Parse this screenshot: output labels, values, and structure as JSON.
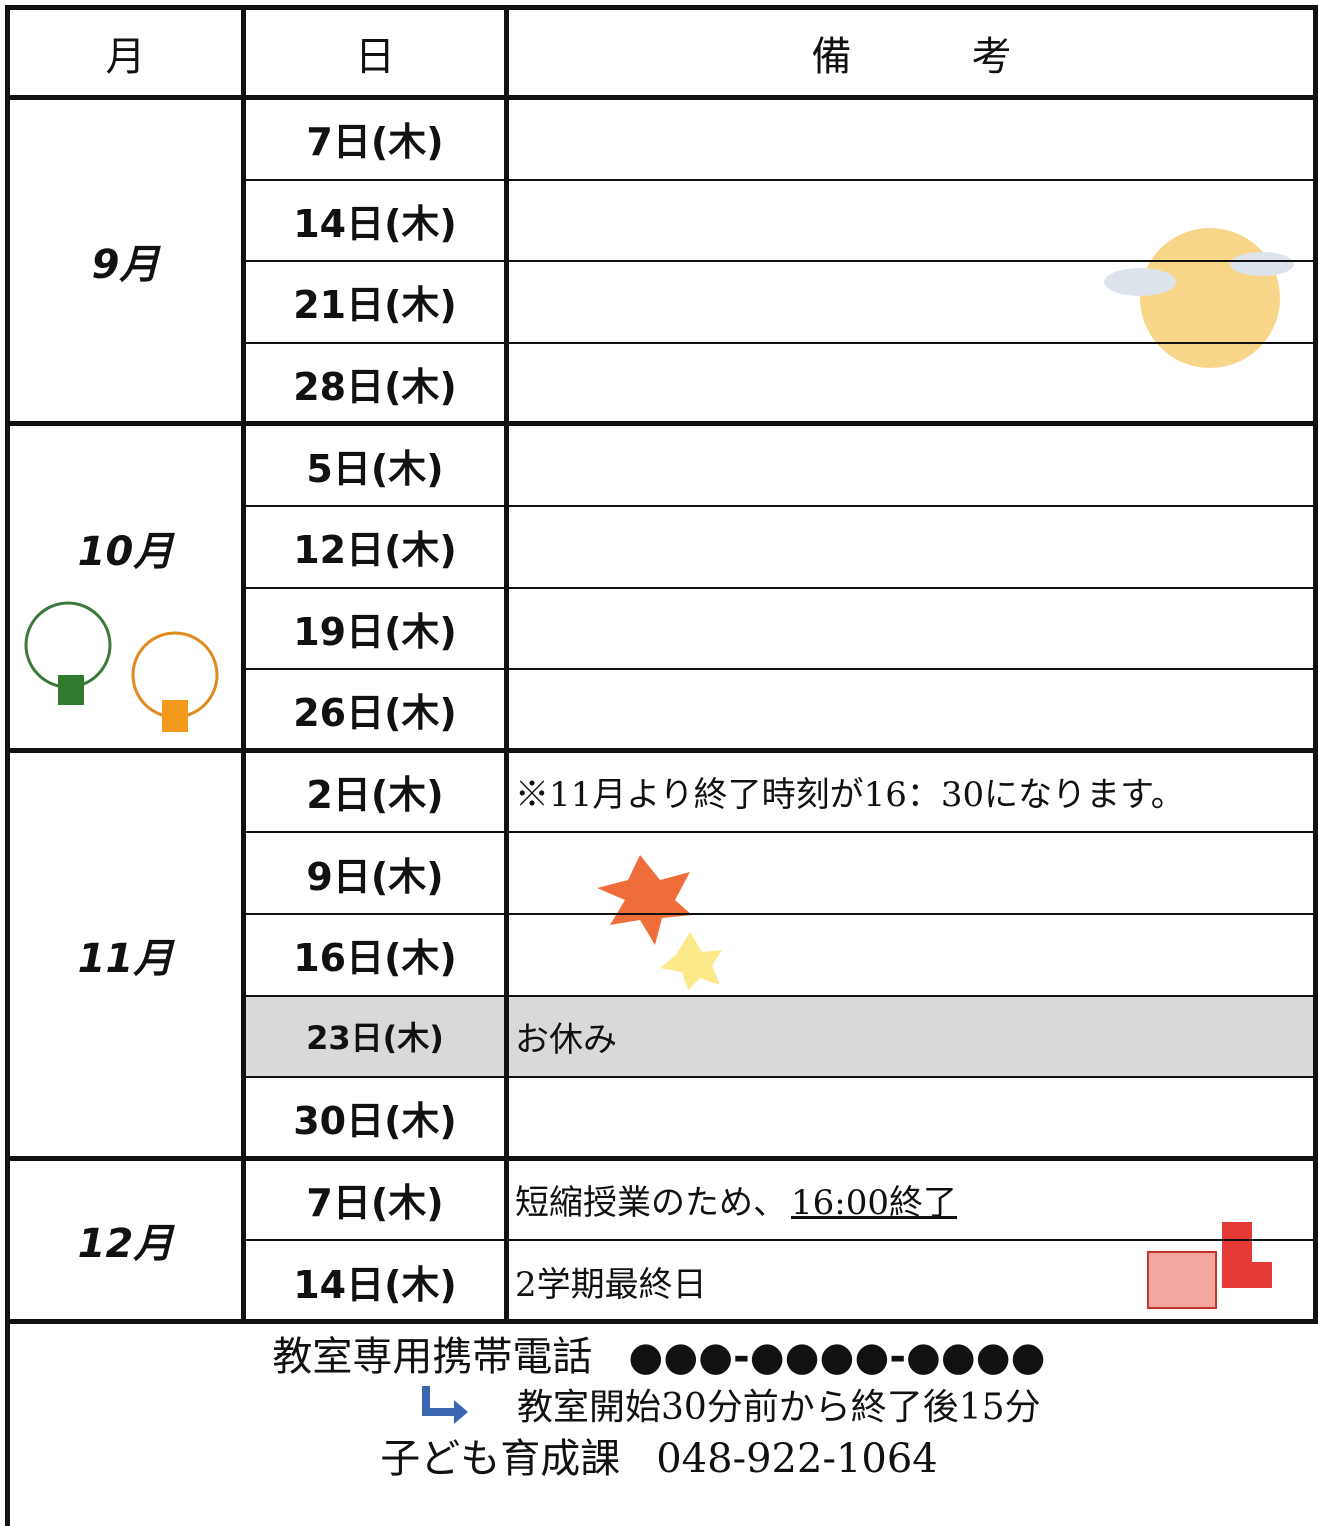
{
  "header": [
    "月",
    "日",
    "備　　　考"
  ],
  "months": [
    {
      "month": "9月",
      "days": [
        {
          "day": "7日(木)"
        },
        {
          "day": "14日(木)"
        },
        {
          "day": "21日(木)"
        },
        {
          "day": "28日(木)"
        }
      ]
    },
    {
      "month": "10月",
      "days": [
        {
          "day": "5日(木)"
        },
        {
          "day": "12日(木)"
        },
        {
          "day": "19日(木)"
        },
        {
          "day": "26日(木)"
        }
      ]
    },
    {
      "month": "11月",
      "days": [
        {
          "day": "2日(木)",
          "note": "※11月より終了時刻が16：30になります。"
        },
        {
          "day": "9日(木)"
        },
        {
          "day": "16日(木)"
        },
        {
          "day": "23日(木)",
          "note": "お休み",
          "shaded": true
        },
        {
          "day": "30日(木)"
        }
      ]
    },
    {
      "month": "12月",
      "days": [
        {
          "day": "7日(木)",
          "note": "短縮授業のため、",
          "note_emphasis": "16:00終了"
        },
        {
          "day": "14日(木)",
          "note": "2学期最終日"
        }
      ]
    }
  ],
  "footer": {
    "phone_label": "教室専用携帯電話",
    "phone_number": "●●●-●●●●-●●●●",
    "hours": "教室開始30分前から終了後15分",
    "office": "子ども育成課",
    "office_number": "048-922-1064"
  }
}
